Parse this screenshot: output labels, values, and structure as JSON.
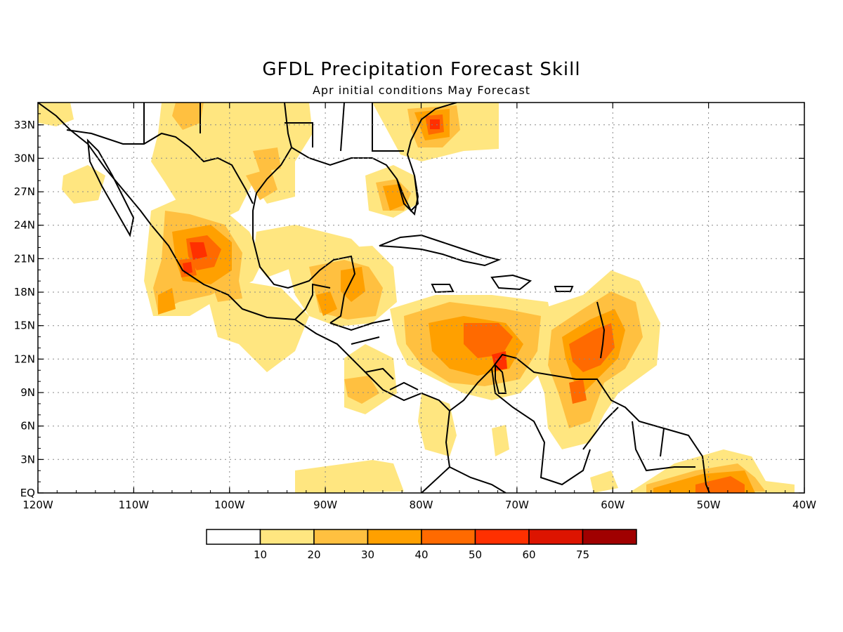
{
  "title": "GFDL Precipitation Forecast Skill",
  "subtitle": "Apr initial conditions  May Forecast",
  "map": {
    "lon_range": [
      -120,
      -40
    ],
    "lat_range": [
      0,
      35
    ],
    "lon_ticks": [
      "120W",
      "110W",
      "100W",
      "90W",
      "80W",
      "70W",
      "60W",
      "50W",
      "40W"
    ],
    "lat_ticks": [
      "EQ",
      "3N",
      "6N",
      "9N",
      "12N",
      "15N",
      "18N",
      "21N",
      "24N",
      "27N",
      "30N",
      "33N"
    ],
    "grid": "dotted"
  },
  "legend": {
    "labels": [
      "10",
      "20",
      "30",
      "40",
      "50",
      "60",
      "75"
    ],
    "colors": [
      "#ffffff",
      "#ffe680",
      "#ffc040",
      "#ffa000",
      "#ff6a00",
      "#ff3000",
      "#dd1400",
      "#a00000"
    ]
  },
  "colors": {
    "level10": "#ffe680",
    "level20": "#ffc040",
    "level30": "#ffa000",
    "level40": "#ff6a00",
    "level50": "#ff3000"
  }
}
